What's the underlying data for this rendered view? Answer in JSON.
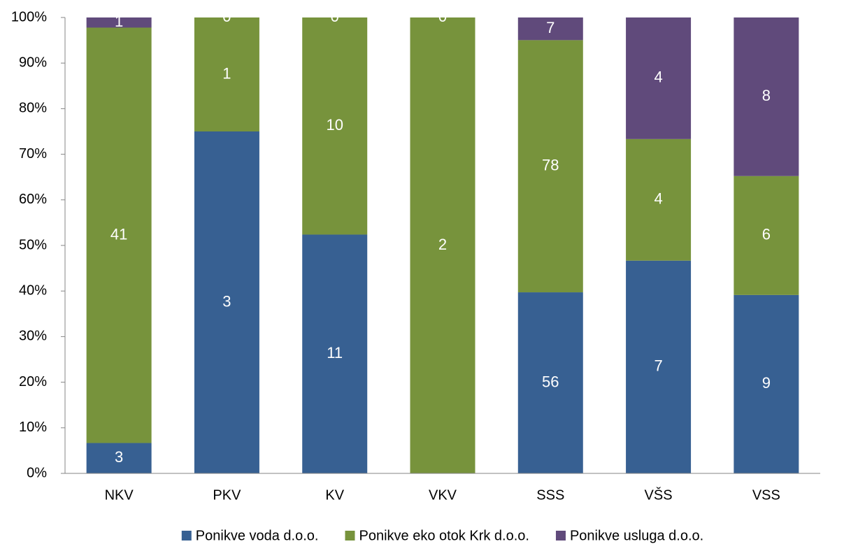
{
  "chart_data": {
    "type": "bar",
    "stacked": "percent",
    "categories": [
      "NKV",
      "PKV",
      "KV",
      "VKV",
      "SSS",
      "VŠS",
      "VSS"
    ],
    "series": [
      {
        "name": "Ponikve voda d.o.o.",
        "color": "#376092",
        "values": [
          3,
          3,
          11,
          0,
          56,
          7,
          9
        ]
      },
      {
        "name": "Ponikve eko otok Krk d.o.o.",
        "color": "#77933c",
        "values": [
          41,
          1,
          10,
          2,
          78,
          4,
          6
        ]
      },
      {
        "name": "Ponikve usluga d.o.o.",
        "color": "#604a7b",
        "values": [
          1,
          0,
          0,
          0,
          7,
          4,
          8
        ]
      }
    ],
    "ylim": [
      0,
      100
    ],
    "yticks": [
      {
        "value": 0,
        "label": "0%"
      },
      {
        "value": 10,
        "label": "10%"
      },
      {
        "value": 20,
        "label": "20%"
      },
      {
        "value": 30,
        "label": "30%"
      },
      {
        "value": 40,
        "label": "40%"
      },
      {
        "value": 50,
        "label": "50%"
      },
      {
        "value": 60,
        "label": "60%"
      },
      {
        "value": 70,
        "label": "70%"
      },
      {
        "value": 80,
        "label": "80%"
      },
      {
        "value": 90,
        "label": "90%"
      },
      {
        "value": 100,
        "label": "100%"
      }
    ],
    "legend": "bottom"
  }
}
